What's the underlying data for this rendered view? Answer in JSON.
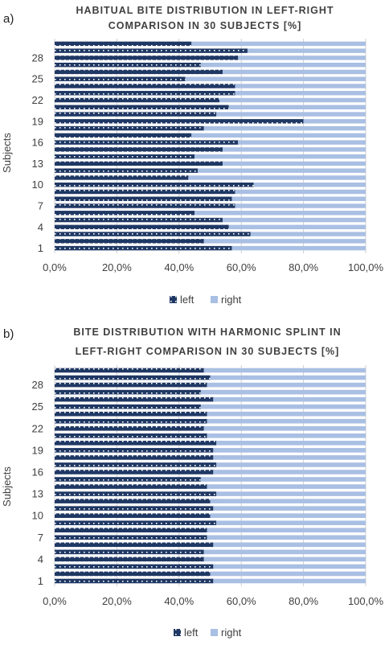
{
  "colors": {
    "left": "#1f3864",
    "right": "#a9bfe3",
    "grid": "#d0d0d0",
    "dot": "#ffffff"
  },
  "chart_data": [
    {
      "panel_label": "a)",
      "type": "bar",
      "orientation": "horizontal",
      "stacked": true,
      "title_lines": [
        "HABITUAL BITE DISTRIBUTION IN LEFT-RIGHT",
        "COMPARISON IN 30 SUBJECTS   [%]"
      ],
      "ylabel": "Subjects",
      "y_tick_labels": [
        "1",
        "4",
        "7",
        "10",
        "13",
        "16",
        "19",
        "22",
        "25",
        "28"
      ],
      "y_tick_subjects": [
        1,
        4,
        7,
        10,
        13,
        16,
        19,
        22,
        25,
        28
      ],
      "x_tick_labels": [
        "0,0%",
        "20,0%",
        "40,0%",
        "60,0%",
        "80,0%",
        "100,0%"
      ],
      "xlim": [
        0,
        100
      ],
      "grid": true,
      "legend_position": "bottom",
      "subjects": [
        1,
        2,
        3,
        4,
        5,
        6,
        7,
        8,
        9,
        10,
        11,
        12,
        13,
        14,
        15,
        16,
        17,
        18,
        19,
        20,
        21,
        22,
        23,
        24,
        25,
        26,
        27,
        28,
        29,
        30
      ],
      "series": [
        {
          "name": "left",
          "values": [
            57,
            48,
            63,
            56,
            54,
            45,
            58,
            57,
            58,
            64,
            43,
            46,
            54,
            45,
            54,
            59,
            44,
            48,
            80,
            52,
            56,
            53,
            58,
            58,
            42,
            54,
            47,
            59,
            62,
            44
          ]
        },
        {
          "name": "right",
          "values": [
            43,
            52,
            37,
            44,
            46,
            55,
            42,
            43,
            42,
            36,
            57,
            54,
            46,
            55,
            46,
            41,
            56,
            52,
            20,
            48,
            44,
            47,
            42,
            42,
            58,
            46,
            53,
            41,
            38,
            56
          ]
        }
      ]
    },
    {
      "panel_label": "b)",
      "type": "bar",
      "orientation": "horizontal",
      "stacked": true,
      "title_lines": [
        "BITE DISTRIBUTION WITH HARMONIC SPLINT IN",
        "LEFT-RIGHT COMPARISON IN 30 SUBJECTS  [%]"
      ],
      "ylabel": "Subjects",
      "y_tick_labels": [
        "1",
        "4",
        "7",
        "10",
        "13",
        "16",
        "19",
        "22",
        "25",
        "28"
      ],
      "y_tick_subjects": [
        1,
        4,
        7,
        10,
        13,
        16,
        19,
        22,
        25,
        28
      ],
      "x_tick_labels": [
        "0,0%",
        "20,0%",
        "40,0%",
        "60,0%",
        "80,0%",
        "100,0%"
      ],
      "xlim": [
        0,
        100
      ],
      "grid": true,
      "legend_position": "bottom",
      "subjects": [
        1,
        2,
        3,
        4,
        5,
        6,
        7,
        8,
        9,
        10,
        11,
        12,
        13,
        14,
        15,
        16,
        17,
        18,
        19,
        20,
        21,
        22,
        23,
        24,
        25,
        26,
        27,
        28,
        29,
        30
      ],
      "series": [
        {
          "name": "left",
          "values": [
            51,
            50,
            51,
            48,
            48,
            51,
            49,
            49,
            52,
            50,
            51,
            50,
            52,
            49,
            47,
            51,
            52,
            51,
            51,
            52,
            49,
            48,
            49,
            49,
            47,
            51,
            47,
            49,
            50,
            48
          ]
        },
        {
          "name": "right",
          "values": [
            49,
            50,
            49,
            52,
            52,
            49,
            51,
            51,
            48,
            50,
            49,
            50,
            48,
            51,
            53,
            49,
            48,
            49,
            49,
            48,
            51,
            52,
            51,
            51,
            53,
            49,
            53,
            51,
            50,
            52
          ]
        }
      ]
    }
  ]
}
